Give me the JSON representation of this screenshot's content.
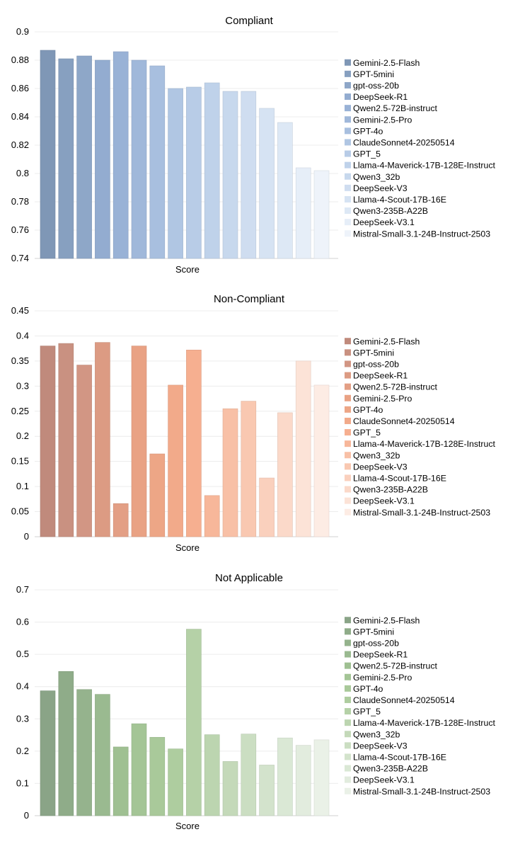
{
  "chart_data": [
    {
      "type": "bar",
      "title": "Compliant",
      "xlabel": "Score",
      "ylabel": "",
      "ylim": [
        0.74,
        0.9
      ],
      "yticks": [
        0.74,
        0.76,
        0.78,
        0.8,
        0.82,
        0.84,
        0.86,
        0.88,
        0.9
      ],
      "ytick_labels": [
        "0.74",
        "0.76",
        "0.78",
        "0.8",
        "0.82",
        "0.84",
        "0.86",
        "0.88",
        "0.9"
      ],
      "legend_position": "right",
      "grid": true,
      "series": [
        {
          "name": "Gemini-2.5-Flash",
          "value": 0.887,
          "color": "#7f97b6"
        },
        {
          "name": "GPT-5mini",
          "value": 0.881,
          "color": "#87a0c0"
        },
        {
          "name": "gpt-oss-20b",
          "value": 0.883,
          "color": "#8ea7c8"
        },
        {
          "name": "DeepSeek-R1",
          "value": 0.88,
          "color": "#93acd0"
        },
        {
          "name": "Qwen2.5-72B-instruct",
          "value": 0.886,
          "color": "#99b2d6"
        },
        {
          "name": "Gemini-2.5-Pro",
          "value": 0.88,
          "color": "#a0b8da"
        },
        {
          "name": "GPT-4o",
          "value": 0.876,
          "color": "#a8bfdf"
        },
        {
          "name": "ClaudeSonnet4-20250514",
          "value": 0.86,
          "color": "#b0c6e3"
        },
        {
          "name": "GPT_5",
          "value": 0.861,
          "color": "#b8cce7"
        },
        {
          "name": "Llama-4-Maverick-17B-128E-Instruct",
          "value": 0.864,
          "color": "#bfd2ea"
        },
        {
          "name": "Qwen3_32b",
          "value": 0.858,
          "color": "#c7d8ed"
        },
        {
          "name": "DeepSeek-V3",
          "value": 0.858,
          "color": "#cfddf0"
        },
        {
          "name": "Llama-4-Scout-17B-16E",
          "value": 0.846,
          "color": "#d6e3f3"
        },
        {
          "name": "Qwen3-235B-A22B",
          "value": 0.836,
          "color": "#dde8f5"
        },
        {
          "name": "DeepSeek-V3.1",
          "value": 0.804,
          "color": "#e6eef8"
        },
        {
          "name": "Mistral-Small-3.1-24B-Instruct-2503",
          "value": 0.802,
          "color": "#eef3fa"
        }
      ]
    },
    {
      "type": "bar",
      "title": "Non-Compliant",
      "xlabel": "Score",
      "ylabel": "",
      "ylim": [
        0,
        0.45
      ],
      "yticks": [
        0,
        0.05,
        0.1,
        0.15,
        0.2,
        0.25,
        0.3,
        0.35,
        0.4,
        0.45
      ],
      "ytick_labels": [
        "0",
        "0.05",
        "0.1",
        "0.15",
        "0.2",
        "0.25",
        "0.3",
        "0.35",
        "0.4",
        "0.45"
      ],
      "legend_position": "right",
      "grid": true,
      "series": [
        {
          "name": "Gemini-2.5-Flash",
          "value": 0.38,
          "color": "#c08a7c"
        },
        {
          "name": "GPT-5mini",
          "value": 0.385,
          "color": "#c99181"
        },
        {
          "name": "gpt-oss-20b",
          "value": 0.342,
          "color": "#d29684"
        },
        {
          "name": "DeepSeek-R1",
          "value": 0.387,
          "color": "#dc9b83"
        },
        {
          "name": "Qwen2.5-72B-instruct",
          "value": 0.066,
          "color": "#e39f85"
        },
        {
          "name": "Gemini-2.5-Pro",
          "value": 0.38,
          "color": "#e9a284"
        },
        {
          "name": "GPT-4o",
          "value": 0.165,
          "color": "#eda686"
        },
        {
          "name": "ClaudeSonnet4-20250514",
          "value": 0.302,
          "color": "#f2aa8a"
        },
        {
          "name": "GPT_5",
          "value": 0.372,
          "color": "#f6af90"
        },
        {
          "name": "Llama-4-Maverick-17B-128E-Instruct",
          "value": 0.082,
          "color": "#f7b79a"
        },
        {
          "name": "Qwen3_32b",
          "value": 0.255,
          "color": "#f8c0a6"
        },
        {
          "name": "DeepSeek-V3",
          "value": 0.27,
          "color": "#f9c8b1"
        },
        {
          "name": "Llama-4-Scout-17B-16E",
          "value": 0.117,
          "color": "#fad0bd"
        },
        {
          "name": "Qwen3-235B-A22B",
          "value": 0.247,
          "color": "#fbd9c9"
        },
        {
          "name": "DeepSeek-V3.1",
          "value": 0.35,
          "color": "#fce3d7"
        },
        {
          "name": "Mistral-Small-3.1-24B-Instruct-2503",
          "value": 0.302,
          "color": "#fdece4"
        }
      ]
    },
    {
      "type": "bar",
      "title": "Not Applicable",
      "xlabel": "Score",
      "ylabel": "",
      "ylim": [
        0,
        0.7
      ],
      "yticks": [
        0,
        0.1,
        0.2,
        0.3,
        0.4,
        0.5,
        0.6,
        0.7
      ],
      "ytick_labels": [
        "0",
        "0.1",
        "0.2",
        "0.3",
        "0.4",
        "0.5",
        "0.6",
        "0.7"
      ],
      "legend_position": "right",
      "grid": true,
      "series": [
        {
          "name": "Gemini-2.5-Flash",
          "value": 0.387,
          "color": "#8aa487"
        },
        {
          "name": "GPT-5mini",
          "value": 0.447,
          "color": "#8fac89"
        },
        {
          "name": "gpt-oss-20b",
          "value": 0.391,
          "color": "#95b38d"
        },
        {
          "name": "DeepSeek-R1",
          "value": 0.376,
          "color": "#9aba90"
        },
        {
          "name": "Qwen2.5-72B-instruct",
          "value": 0.213,
          "color": "#9fc092"
        },
        {
          "name": "Gemini-2.5-Pro",
          "value": 0.285,
          "color": "#a4c596"
        },
        {
          "name": "GPT-4o",
          "value": 0.243,
          "color": "#a9c99a"
        },
        {
          "name": "ClaudeSonnet4-20250514",
          "value": 0.207,
          "color": "#aecd9f"
        },
        {
          "name": "GPT_5",
          "value": 0.578,
          "color": "#b5d1a7"
        },
        {
          "name": "Llama-4-Maverick-17B-128E-Instruct",
          "value": 0.251,
          "color": "#bcd5b0"
        },
        {
          "name": "Qwen3_32b",
          "value": 0.168,
          "color": "#c4d9b9"
        },
        {
          "name": "DeepSeek-V3",
          "value": 0.253,
          "color": "#cbdec2"
        },
        {
          "name": "Llama-4-Scout-17B-16E",
          "value": 0.157,
          "color": "#d3e3cc"
        },
        {
          "name": "Qwen3-235B-A22B",
          "value": 0.241,
          "color": "#dae8d5"
        },
        {
          "name": "DeepSeek-V3.1",
          "value": 0.218,
          "color": "#e2ecde"
        },
        {
          "name": "Mistral-Small-3.1-24B-Instruct-2503",
          "value": 0.235,
          "color": "#eaf1e7"
        }
      ]
    }
  ]
}
